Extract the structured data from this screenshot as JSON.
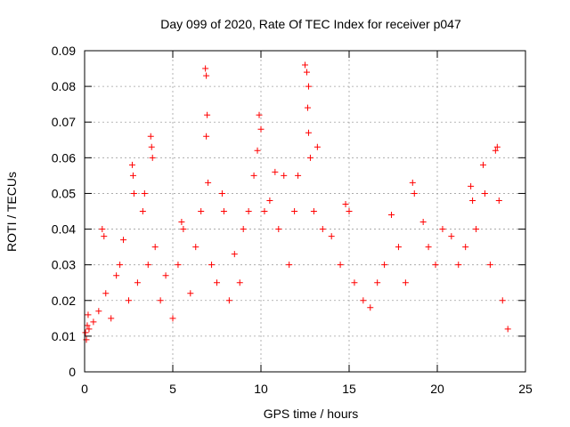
{
  "chart_data": {
    "type": "scatter",
    "title": "Day 099 of 2020, Rate Of TEC Index for receiver p047",
    "xlabel": "GPS time / hours",
    "ylabel": "ROTI / TECUs",
    "xlim": [
      0,
      25
    ],
    "ylim": [
      0,
      0.09
    ],
    "x_ticks": [
      0,
      5,
      10,
      15,
      20,
      25
    ],
    "x_tick_labels": [
      "0",
      "5",
      "10",
      "15",
      "20",
      "25"
    ],
    "y_ticks": [
      0,
      0.01,
      0.02,
      0.03,
      0.04,
      0.05,
      0.06,
      0.07,
      0.08,
      0.09
    ],
    "y_tick_labels": [
      "0",
      "0.01",
      "0.02",
      "0.03",
      "0.04",
      "0.05",
      "0.06",
      "0.07",
      "0.08",
      "0.09"
    ],
    "grid": true,
    "marker": "+",
    "marker_color": "#ff0000",
    "series": [
      {
        "points": [
          [
            0.05,
            0.011
          ],
          [
            0.1,
            0.009
          ],
          [
            0.15,
            0.013
          ],
          [
            0.2,
            0.016
          ],
          [
            0.25,
            0.012
          ],
          [
            0.5,
            0.014
          ],
          [
            0.8,
            0.017
          ],
          [
            1.0,
            0.04
          ],
          [
            1.1,
            0.038
          ],
          [
            1.2,
            0.022
          ],
          [
            1.5,
            0.015
          ],
          [
            1.8,
            0.027
          ],
          [
            2.0,
            0.03
          ],
          [
            2.2,
            0.037
          ],
          [
            2.5,
            0.02
          ],
          [
            2.7,
            0.058
          ],
          [
            2.75,
            0.055
          ],
          [
            2.8,
            0.05
          ],
          [
            3.0,
            0.025
          ],
          [
            3.3,
            0.045
          ],
          [
            3.4,
            0.05
          ],
          [
            3.6,
            0.03
          ],
          [
            3.75,
            0.066
          ],
          [
            3.8,
            0.063
          ],
          [
            3.85,
            0.06
          ],
          [
            4.0,
            0.035
          ],
          [
            4.3,
            0.02
          ],
          [
            4.6,
            0.027
          ],
          [
            5.0,
            0.015
          ],
          [
            5.3,
            0.03
          ],
          [
            5.5,
            0.042
          ],
          [
            5.6,
            0.04
          ],
          [
            6.0,
            0.022
          ],
          [
            6.3,
            0.035
          ],
          [
            6.6,
            0.045
          ],
          [
            6.85,
            0.085
          ],
          [
            6.9,
            0.083
          ],
          [
            6.95,
            0.072
          ],
          [
            6.9,
            0.066
          ],
          [
            7.0,
            0.053
          ],
          [
            7.2,
            0.03
          ],
          [
            7.5,
            0.025
          ],
          [
            7.8,
            0.05
          ],
          [
            7.9,
            0.045
          ],
          [
            8.2,
            0.02
          ],
          [
            8.5,
            0.033
          ],
          [
            8.8,
            0.025
          ],
          [
            9.0,
            0.04
          ],
          [
            9.3,
            0.045
          ],
          [
            9.6,
            0.055
          ],
          [
            9.8,
            0.062
          ],
          [
            9.9,
            0.072
          ],
          [
            10.0,
            0.068
          ],
          [
            10.2,
            0.045
          ],
          [
            10.5,
            0.048
          ],
          [
            10.8,
            0.056
          ],
          [
            11.0,
            0.04
          ],
          [
            11.3,
            0.055
          ],
          [
            11.6,
            0.03
          ],
          [
            11.9,
            0.045
          ],
          [
            12.1,
            0.055
          ],
          [
            12.5,
            0.086
          ],
          [
            12.6,
            0.084
          ],
          [
            12.7,
            0.08
          ],
          [
            12.65,
            0.074
          ],
          [
            12.7,
            0.067
          ],
          [
            12.8,
            0.06
          ],
          [
            13.0,
            0.045
          ],
          [
            13.2,
            0.063
          ],
          [
            13.5,
            0.04
          ],
          [
            14.0,
            0.038
          ],
          [
            14.5,
            0.03
          ],
          [
            14.8,
            0.047
          ],
          [
            15.0,
            0.045
          ],
          [
            15.3,
            0.025
          ],
          [
            15.8,
            0.02
          ],
          [
            16.2,
            0.018
          ],
          [
            16.6,
            0.025
          ],
          [
            17.0,
            0.03
          ],
          [
            17.4,
            0.044
          ],
          [
            17.8,
            0.035
          ],
          [
            18.2,
            0.025
          ],
          [
            18.6,
            0.053
          ],
          [
            18.7,
            0.05
          ],
          [
            19.2,
            0.042
          ],
          [
            19.5,
            0.035
          ],
          [
            19.9,
            0.03
          ],
          [
            20.3,
            0.04
          ],
          [
            20.8,
            0.038
          ],
          [
            21.2,
            0.03
          ],
          [
            21.6,
            0.035
          ],
          [
            21.9,
            0.052
          ],
          [
            22.0,
            0.048
          ],
          [
            22.2,
            0.04
          ],
          [
            22.6,
            0.058
          ],
          [
            22.7,
            0.05
          ],
          [
            23.0,
            0.03
          ],
          [
            23.3,
            0.062
          ],
          [
            23.4,
            0.063
          ],
          [
            23.5,
            0.048
          ],
          [
            23.7,
            0.02
          ],
          [
            24.0,
            0.012
          ]
        ]
      }
    ]
  }
}
